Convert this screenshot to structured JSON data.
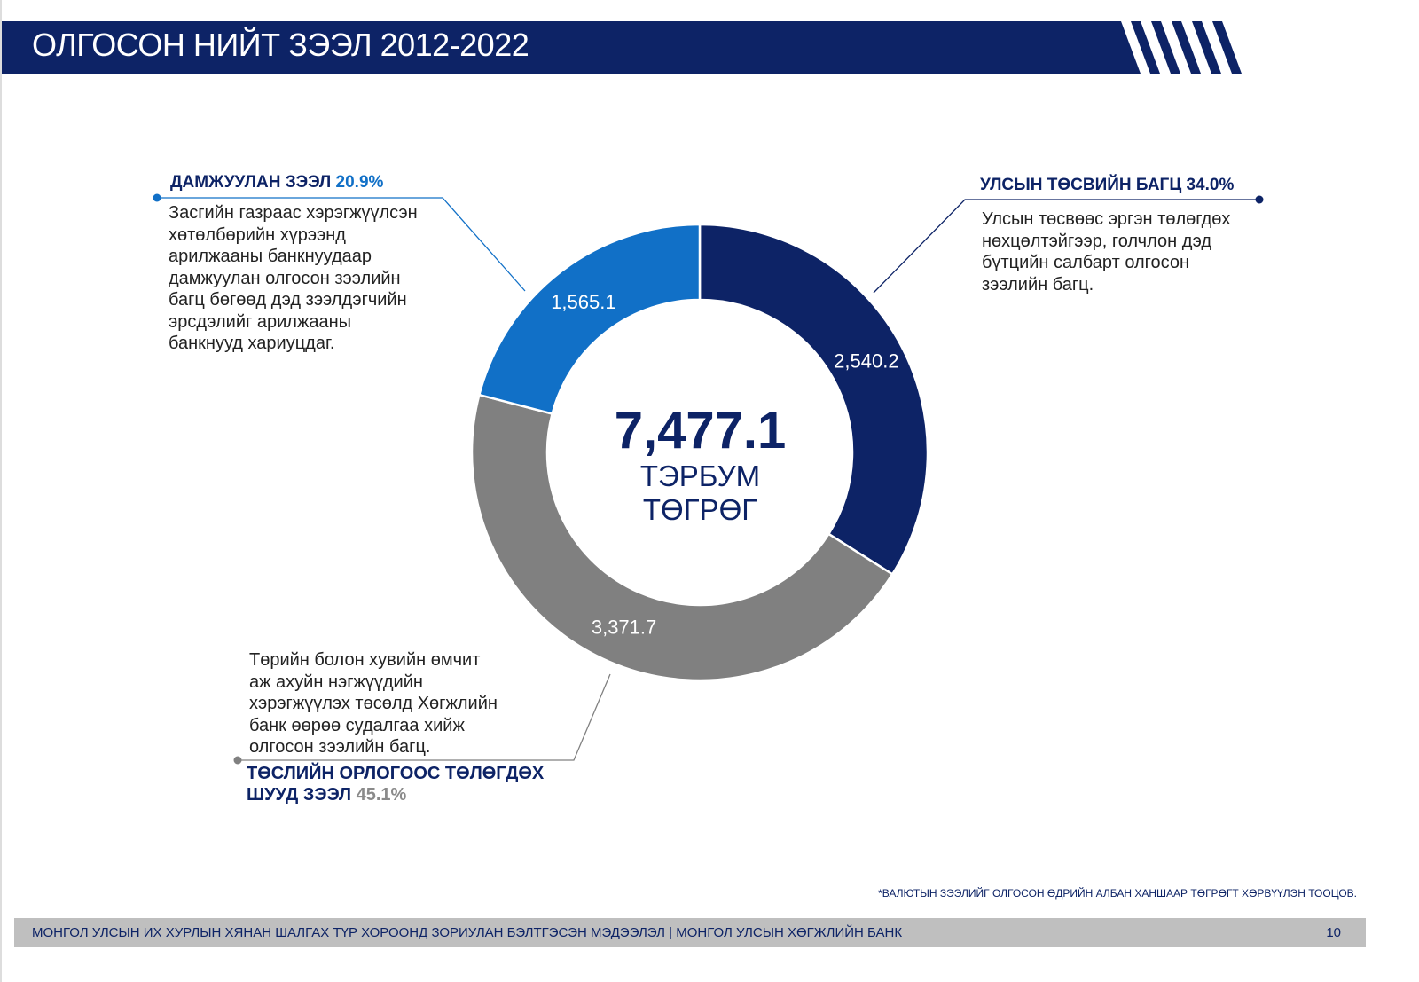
{
  "header": {
    "title": "ОЛГОСОН НИЙТ ЗЭЭЛ 2012-2022"
  },
  "chart_data": {
    "type": "pie",
    "variant": "donut",
    "title": "ОЛГОСОН НИЙТ ЗЭЭЛ 2012-2022",
    "total": {
      "value": "7,477.1",
      "unit_line1": "ТЭРБУМ",
      "unit_line2": "ТӨГРӨГ"
    },
    "slices": [
      {
        "name": "УЛСЫН ТӨСВИЙН БАГЦ",
        "value": 2540.2,
        "label": "2,540.2",
        "percent": "34.0%",
        "color": "#0d2366",
        "description": "Улсын төсвөөс эргэн төлөгдөх нөхцөлтэйгээр, голчлон дэд бүтцийн салбарт олгосон зээлийн багц."
      },
      {
        "name": "ТӨСЛИЙН ОРЛОГООС ТӨЛӨГДӨХ ШУУД ЗЭЭЛ",
        "name_line1": "ТӨСЛИЙН ОРЛОГООС ТӨЛӨГДӨХ",
        "name_line2": "ШУУД ЗЭЭЛ",
        "value": 3371.7,
        "label": "3,371.7",
        "percent": "45.1%",
        "color": "#808080",
        "description": "Төрийн болон хувийн өмчит аж ахуйн нэгжүүдийн хэрэгжүүлэх төсөлд Хөгжлийн банк өөрөө судалгаа хийж олгосон зээлийн багц."
      },
      {
        "name": "ДАМЖУУЛАН ЗЭЭЛ",
        "value": 1565.1,
        "label": "1,565.1",
        "percent": "20.9%",
        "color": "#1170c7",
        "description": "Засгийн газраас хэрэгжүүлсэн хөтөлбөрийн хүрээнд арилжааны банкнуудаар дамжуулан олгосон зээлийн багц бөгөөд дэд зээлдэгчийн эрсдэлийг арилжааны банкнууд хариуцдаг."
      }
    ]
  },
  "footnote": "*ВАЛЮТЫН ЗЭЭЛИЙГ ОЛГОСОН ӨДРИЙН АЛБАН ХАНШААР ТӨГРӨГТ ХӨРВҮҮЛЭН ТООЦОВ.",
  "footer": {
    "text": "МОНГОЛ УЛСЫН ИХ ХУРЛЫН ХЯНАН ШАЛГАХ ТҮР ХОРООНД ЗОРИУЛАН БЭЛТГЭСЭН МЭДЭЭЛЭЛ  |  МОНГОЛ УЛСЫН ХӨГЖЛИЙН БАНК",
    "page": "10"
  }
}
